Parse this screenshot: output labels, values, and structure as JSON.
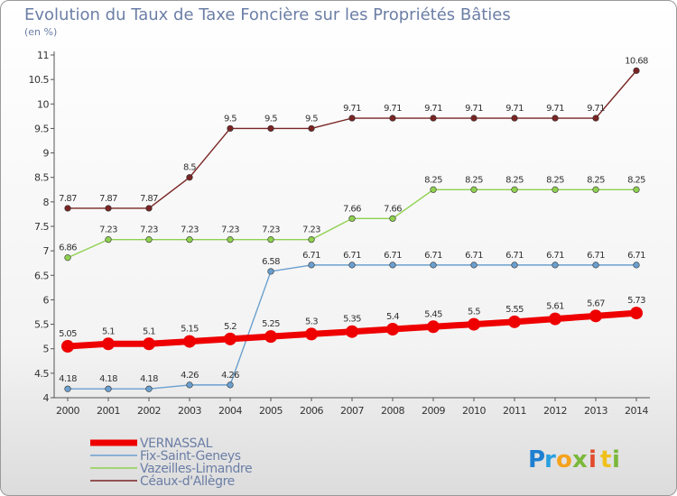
{
  "chart_data": {
    "type": "line",
    "title": "Evolution du Taux de Taxe Foncière sur les Propriétés Bâties",
    "subtitle": "(en %)",
    "xlabel": "",
    "ylabel": "",
    "ylim": [
      4,
      11
    ],
    "ytick_labels": [
      "4",
      "4.5",
      "5",
      "5.5",
      "6",
      "6.5",
      "7",
      "7.5",
      "8",
      "8.5",
      "9",
      "9.5",
      "10",
      "10.5",
      "11"
    ],
    "categories": [
      "2000",
      "2001",
      "2002",
      "2003",
      "2004",
      "2005",
      "2006",
      "2007",
      "2008",
      "2009",
      "2010",
      "2011",
      "2012",
      "2013",
      "2014"
    ],
    "series": [
      {
        "name": "Céaux-d'Allègre",
        "color": "#7a2424",
        "values": [
          7.87,
          7.87,
          7.87,
          8.5,
          9.5,
          9.5,
          9.5,
          9.71,
          9.71,
          9.71,
          9.71,
          9.71,
          9.71,
          9.71,
          10.68
        ]
      },
      {
        "name": "Vazeilles-Limandre",
        "color": "#8fd14f",
        "values": [
          6.86,
          7.23,
          7.23,
          7.23,
          7.23,
          7.23,
          7.23,
          7.66,
          7.66,
          8.25,
          8.25,
          8.25,
          8.25,
          8.25,
          8.25
        ]
      },
      {
        "name": "Fix-Saint-Geneys",
        "color": "#6a9fcf",
        "values": [
          4.18,
          4.18,
          4.18,
          4.26,
          4.26,
          6.58,
          6.71,
          6.71,
          6.71,
          6.71,
          6.71,
          6.71,
          6.71,
          6.71,
          6.71
        ]
      },
      {
        "name": "VERNASSAL",
        "color": "#ee0000",
        "values": [
          5.05,
          5.1,
          5.1,
          5.15,
          5.2,
          5.25,
          5.3,
          5.35,
          5.4,
          5.45,
          5.5,
          5.55,
          5.61,
          5.67,
          5.73
        ]
      }
    ],
    "data_labels": [
      [
        "7.87",
        "7.87",
        "7.87",
        "8.5",
        "9.5",
        "9.5",
        "9.5",
        "9.71",
        "9.71",
        "9.71",
        "9.71",
        "9.71",
        "9.71",
        "9.71",
        "10.68"
      ],
      [
        "6.86",
        "7.23",
        "7.23",
        "7.23",
        "7.23",
        "7.23",
        "7.23",
        "7.66",
        "7.66",
        "8.25",
        "8.25",
        "8.25",
        "8.25",
        "8.25",
        "8.25"
      ],
      [
        "4.18",
        "4.18",
        "4.18",
        "4.26",
        "4.26",
        "6.58",
        "6.71",
        "6.71",
        "6.71",
        "6.71",
        "6.71",
        "6.71",
        "6.71",
        "6.71",
        "6.71"
      ],
      [
        "5.05",
        "5.1",
        "5.1",
        "5.15",
        "5.2",
        "5.25",
        "5.3",
        "5.35",
        "5.4",
        "5.45",
        "5.5",
        "5.55",
        "5.61",
        "5.67",
        "5.73"
      ]
    ],
    "legend": [
      "VERNASSAL",
      "Fix-Saint-Geneys",
      "Vazeilles-Limandre",
      "Céaux-d'Allègre"
    ],
    "legend_position": "bottom-left",
    "grid": false
  },
  "brand": {
    "letters": [
      "P",
      "r",
      "o",
      "x",
      "i",
      "t",
      "i"
    ],
    "colors": [
      "#1e7fd0",
      "#2aa0e0",
      "#f5a21c",
      "#7ab83a",
      "#e14b2c",
      "#f0c01a",
      "#7ab83a"
    ]
  }
}
